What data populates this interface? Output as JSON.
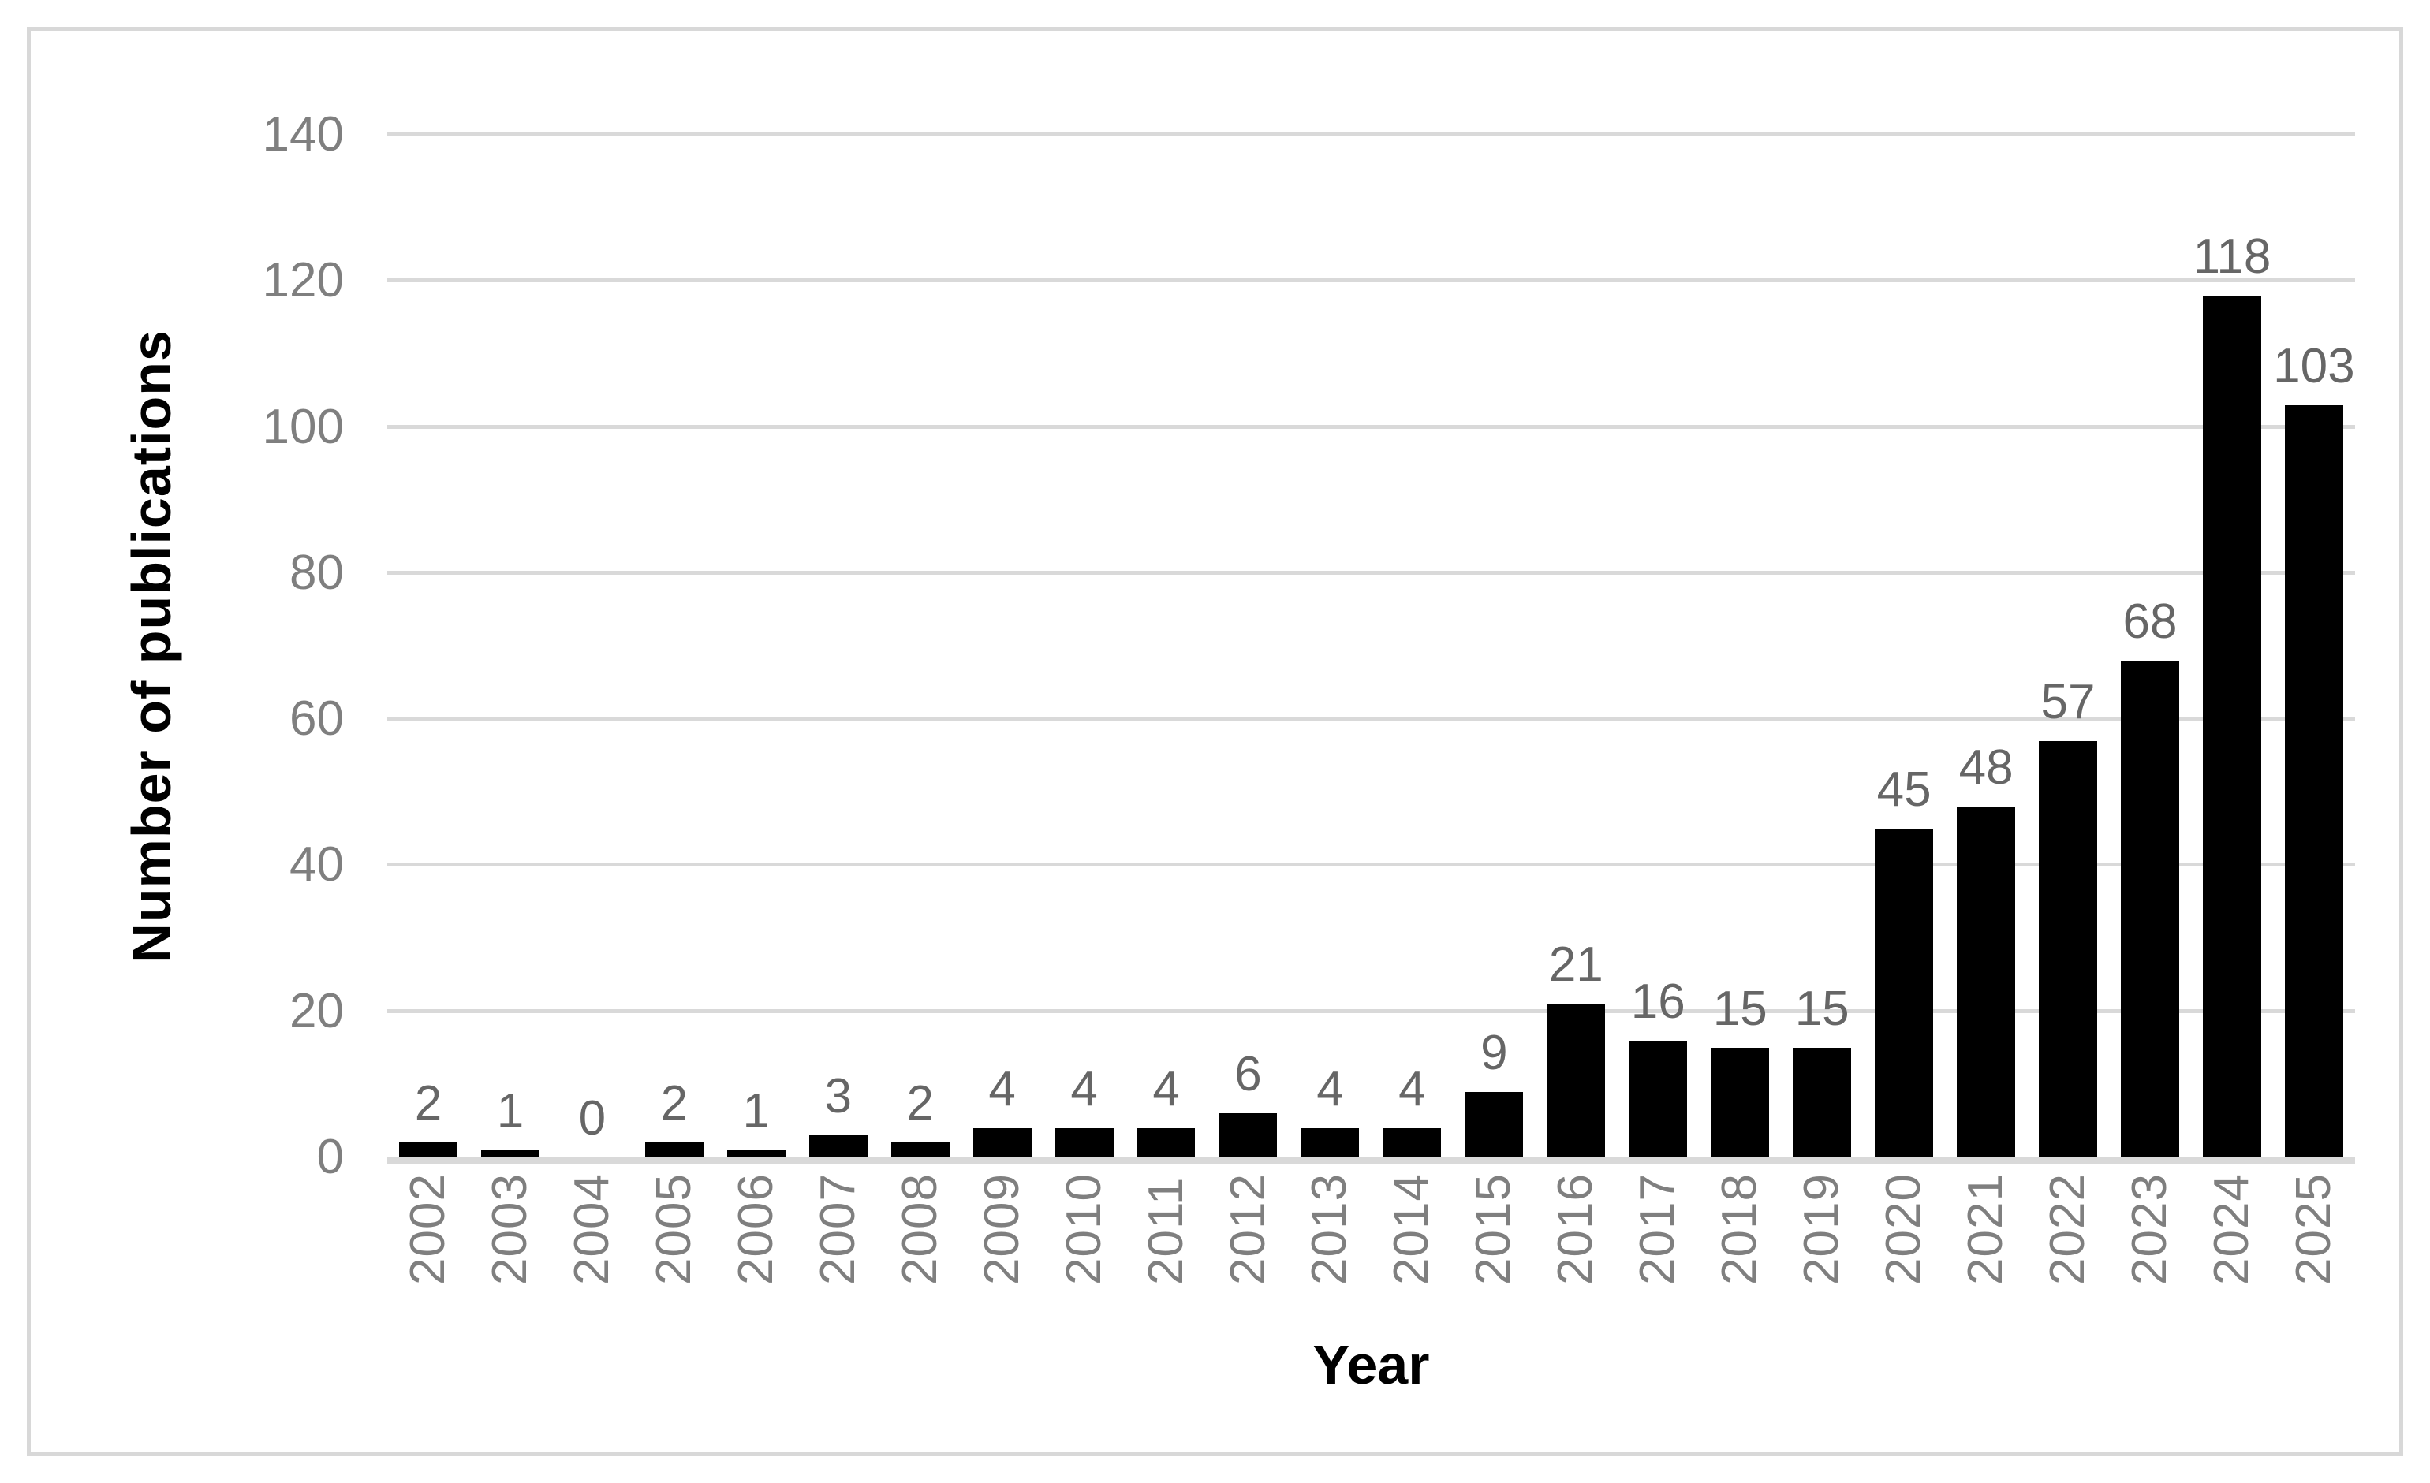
{
  "chart_data": {
    "type": "bar",
    "title": "",
    "xlabel": "Year",
    "ylabel": "Number of publications",
    "categories": [
      "2002",
      "2003",
      "2004",
      "2005",
      "2006",
      "2007",
      "2008",
      "2009",
      "2010",
      "2011",
      "2012",
      "2013",
      "2014",
      "2015",
      "2016",
      "2017",
      "2018",
      "2019",
      "2020",
      "2021",
      "2022",
      "2023",
      "2024",
      "2025"
    ],
    "values": [
      2,
      1,
      0,
      2,
      1,
      3,
      2,
      4,
      4,
      4,
      6,
      4,
      4,
      9,
      21,
      16,
      15,
      15,
      45,
      48,
      57,
      68,
      118,
      103
    ],
    "data_labels_shown": true,
    "ylim": [
      0,
      140
    ],
    "yticks": [
      0,
      20,
      40,
      60,
      80,
      100,
      120,
      140
    ],
    "grid": "horizontal",
    "legend": "none",
    "colors": {
      "bar": "#000000",
      "gridline": "#d9d9d9",
      "axis_line": "#d9d9d9",
      "tick_label": "#7f7f7f",
      "data_label": "#666666",
      "axis_title": "#000000",
      "frame_border": "#d8d8d8",
      "background": "#ffffff"
    }
  }
}
